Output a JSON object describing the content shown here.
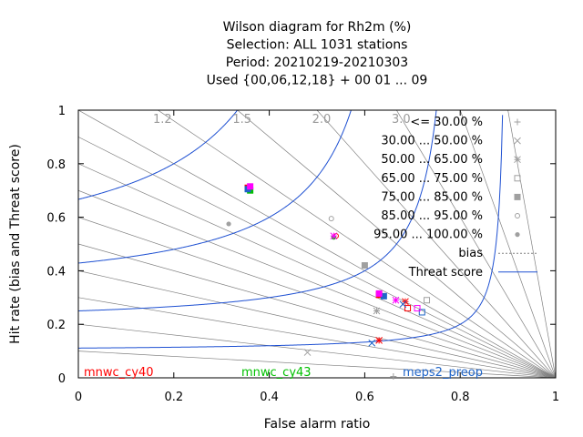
{
  "chart_data": {
    "type": "scatter",
    "title_lines": [
      "Wilson diagram  for Rh2m (%)",
      "Selection: ALL    1031 stations",
      "Period: 20210219-20210303",
      "Used {00,06,12,18} + 00 01 ... 09"
    ],
    "xlabel": "False alarm ratio",
    "ylabel": "Hit rate (bias and Threat score)",
    "xlim": [
      0,
      1
    ],
    "ylim": [
      0,
      1
    ],
    "x_ticks": [
      "0",
      "0.2",
      "0.4",
      "0.6",
      "0.8",
      "1"
    ],
    "y_ticks": [
      "0",
      "0.2",
      "0.4",
      "0.6",
      "0.8",
      "1"
    ],
    "bias_labels": [
      {
        "text": "1.2",
        "bias": 1.2
      },
      {
        "text": "1.5",
        "bias": 1.5
      },
      {
        "text": "2.0",
        "bias": 2.0
      },
      {
        "text": "3.0",
        "bias": 3.0
      }
    ],
    "bias_values": [
      0.1,
      0.2,
      0.3,
      0.4,
      0.5,
      0.6,
      0.7,
      0.8,
      0.9,
      1.0,
      1.2,
      1.5,
      2.0,
      3.0,
      5.0,
      10.0
    ],
    "threat_scores": [
      0.1,
      0.2,
      0.3,
      0.4,
      0.5,
      0.6,
      0.7
    ],
    "legend": [
      {
        "label": "<= 30.00 %",
        "marker": "plus"
      },
      {
        "label": "30.00 ... 50.00 %",
        "marker": "cross"
      },
      {
        "label": "50.00 ... 65.00 %",
        "marker": "star"
      },
      {
        "label": "65.00 ... 75.00 %",
        "marker": "square-open"
      },
      {
        "label": "75.00 ... 85.00 %",
        "marker": "square-filled"
      },
      {
        "label": "85.00 ... 95.00 %",
        "marker": "circle-open"
      },
      {
        "label": "95.00 ... 100.00 %",
        "marker": "circle-filled"
      },
      {
        "label": "bias",
        "marker": "line-dotted"
      },
      {
        "label": "Threat score",
        "marker": "line-blue"
      }
    ],
    "series": [
      {
        "name": "mnwc_cy40",
        "color": "#ff0000",
        "points": [
          {
            "x": 0.63,
            "y": 0.14,
            "marker": "star"
          },
          {
            "x": 0.63,
            "y": 0.31,
            "marker": "square-filled"
          },
          {
            "x": 0.685,
            "y": 0.285,
            "marker": "star"
          },
          {
            "x": 0.69,
            "y": 0.26,
            "marker": "square-open"
          },
          {
            "x": 0.355,
            "y": 0.71,
            "marker": "square-filled"
          },
          {
            "x": 0.54,
            "y": 0.53,
            "marker": "circle-open"
          }
        ]
      },
      {
        "name": "mnwc_cy43",
        "color": "#00c000",
        "points": [
          {
            "x": 0.36,
            "y": 0.7,
            "marker": "square-filled"
          },
          {
            "x": 0.535,
            "y": 0.525,
            "marker": "circle-filled"
          }
        ]
      },
      {
        "name": "meps2_preop",
        "color": "#1e64c8",
        "points": [
          {
            "x": 0.615,
            "y": 0.13,
            "marker": "cross"
          },
          {
            "x": 0.64,
            "y": 0.305,
            "marker": "square-filled"
          },
          {
            "x": 0.68,
            "y": 0.275,
            "marker": "cross"
          },
          {
            "x": 0.72,
            "y": 0.245,
            "marker": "square-open"
          },
          {
            "x": 0.355,
            "y": 0.705,
            "marker": "square-filled"
          }
        ]
      },
      {
        "name": "",
        "color": "#ff00ff",
        "points": [
          {
            "x": 0.36,
            "y": 0.715,
            "marker": "square-filled"
          },
          {
            "x": 0.535,
            "y": 0.53,
            "marker": "star"
          },
          {
            "x": 0.63,
            "y": 0.315,
            "marker": "square-filled"
          },
          {
            "x": 0.665,
            "y": 0.29,
            "marker": "star"
          },
          {
            "x": 0.71,
            "y": 0.26,
            "marker": "square-open"
          }
        ]
      },
      {
        "name": "",
        "color": "#a0a0a0",
        "points": [
          {
            "x": 0.625,
            "y": 0.25,
            "marker": "star"
          },
          {
            "x": 0.6,
            "y": 0.42,
            "marker": "square-filled"
          },
          {
            "x": 0.315,
            "y": 0.575,
            "marker": "circle-filled"
          },
          {
            "x": 0.53,
            "y": 0.595,
            "marker": "circle-open"
          },
          {
            "x": 0.73,
            "y": 0.29,
            "marker": "square-open"
          },
          {
            "x": 0.48,
            "y": 0.095,
            "marker": "cross"
          },
          {
            "x": 0.66,
            "y": 0.005,
            "marker": "plus"
          }
        ]
      }
    ]
  }
}
